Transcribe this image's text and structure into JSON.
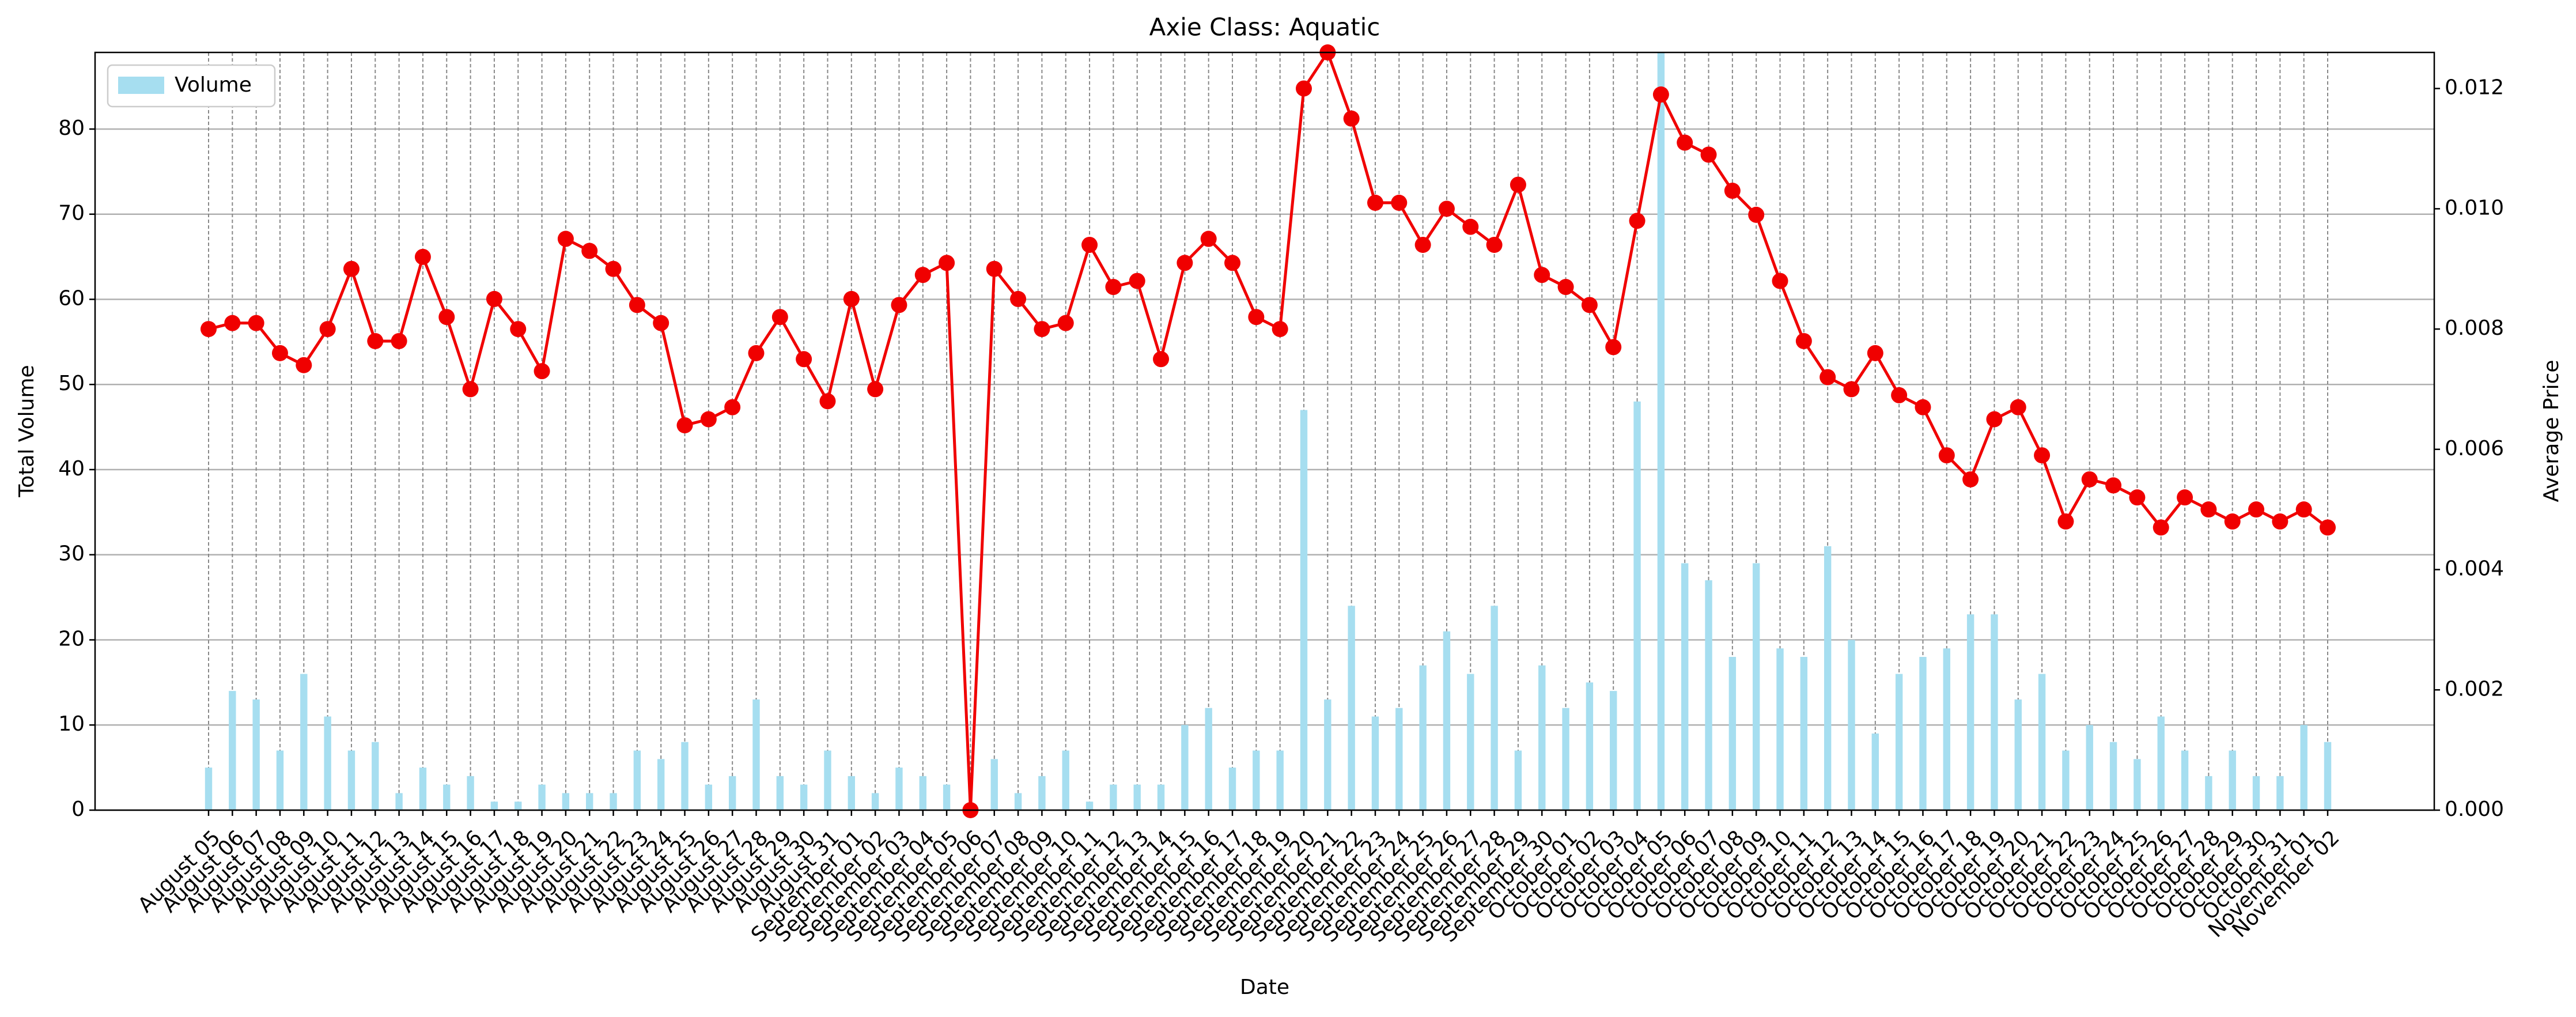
{
  "chart_data": {
    "type": "bar-line",
    "title": "Axie Class: Aquatic",
    "x_label": "Date",
    "y_label": "Total Volume",
    "y2_label": "Average Price",
    "categories": [
      "August 05",
      "August 06",
      "August 07",
      "August 08",
      "August 09",
      "August 10",
      "August 11",
      "August 12",
      "August 13",
      "August 14",
      "August 15",
      "August 16",
      "August 17",
      "August 18",
      "August 19",
      "August 20",
      "August 21",
      "August 22",
      "August 23",
      "August 24",
      "August 25",
      "August 26",
      "August 27",
      "August 28",
      "August 29",
      "August 30",
      "August 31",
      "September 01",
      "September 02",
      "September 03",
      "September 04",
      "September 05",
      "September 06",
      "September 07",
      "September 08",
      "September 09",
      "September 10",
      "September 11",
      "September 12",
      "September 13",
      "September 14",
      "September 15",
      "September 16",
      "September 17",
      "September 18",
      "September 19",
      "September 20",
      "September 21",
      "September 22",
      "September 23",
      "September 24",
      "September 25",
      "September 26",
      "September 27",
      "September 28",
      "September 29",
      "September 30",
      "October 01",
      "October 02",
      "October 03",
      "October 04",
      "October 05",
      "October 06",
      "October 07",
      "October 08",
      "October 09",
      "October 10",
      "October 11",
      "October 12",
      "October 13",
      "October 14",
      "October 15",
      "October 16",
      "October 17",
      "October 18",
      "October 19",
      "October 20",
      "October 21",
      "October 22",
      "October 23",
      "October 24",
      "October 25",
      "October 26",
      "October 27",
      "October 28",
      "October 29",
      "October 30",
      "October 31",
      "November 01",
      "November 02"
    ],
    "series": [
      {
        "name": "Volume",
        "type": "bar",
        "color": "#a6def0",
        "values": [
          5,
          14,
          13,
          7,
          16,
          11,
          7,
          8,
          2,
          5,
          3,
          4,
          1,
          1,
          3,
          2,
          2,
          2,
          7,
          6,
          8,
          3,
          4,
          13,
          4,
          3,
          7,
          4,
          2,
          5,
          4,
          3,
          0,
          6,
          2,
          4,
          7,
          1,
          3,
          3,
          3,
          10,
          12,
          5,
          7,
          7,
          47,
          13,
          24,
          11,
          12,
          17,
          21,
          16,
          24,
          7,
          17,
          12,
          15,
          14,
          48,
          89,
          29,
          27,
          18,
          29,
          19,
          18,
          31,
          20,
          9,
          16,
          18,
          19,
          23,
          23,
          13,
          16,
          7,
          10,
          8,
          6,
          11,
          7,
          4,
          7,
          4,
          4,
          10,
          8
        ]
      },
      {
        "type": "line",
        "axis": "y2",
        "color": "#f00000",
        "values": [
          0.008,
          0.0081,
          0.0081,
          0.0076,
          0.0074,
          0.008,
          0.009,
          0.0078,
          0.0078,
          0.0092,
          0.0082,
          0.007,
          0.0085,
          0.008,
          0.0073,
          0.0095,
          0.0093,
          0.009,
          0.0084,
          0.0081,
          0.0064,
          0.0065,
          0.0067,
          0.0076,
          0.0082,
          0.0075,
          0.0068,
          0.0085,
          0.007,
          0.0084,
          0.0089,
          0.0091,
          0.0,
          0.009,
          0.0085,
          0.008,
          0.0081,
          0.0094,
          0.0087,
          0.0088,
          0.0075,
          0.0091,
          0.0095,
          0.0091,
          0.0082,
          0.008,
          0.012,
          0.0126,
          0.0115,
          0.0101,
          0.0101,
          0.0094,
          0.01,
          0.0097,
          0.0094,
          0.0104,
          0.0089,
          0.0087,
          0.0084,
          0.0077,
          0.0098,
          0.0119,
          0.0111,
          0.0109,
          0.0103,
          0.0099,
          0.0088,
          0.0078,
          0.0072,
          0.007,
          0.0076,
          0.0069,
          0.0067,
          0.0059,
          0.0055,
          0.0065,
          0.0067,
          0.0059,
          0.0048,
          0.0055,
          0.0054,
          0.0052,
          0.0047,
          0.0052,
          0.005,
          0.0048,
          0.005,
          0.0048,
          0.005,
          0.0047
        ]
      }
    ],
    "ylim": [
      0,
      89
    ],
    "yticks": [
      0,
      10,
      20,
      30,
      40,
      50,
      60,
      70,
      80
    ],
    "y2lim": [
      0,
      0.0126
    ],
    "y2ticks": [
      {
        "value": 0,
        "label": "0.000"
      },
      {
        "value": 0.002,
        "label": "0.002"
      },
      {
        "value": 0.004,
        "label": "0.004"
      },
      {
        "value": 0.006,
        "label": "0.006"
      },
      {
        "value": 0.008,
        "label": "0.008"
      },
      {
        "value": 0.01,
        "label": "0.010"
      },
      {
        "value": 0.012,
        "label": "0.012"
      }
    ],
    "grid": true,
    "legend": "upper left"
  }
}
